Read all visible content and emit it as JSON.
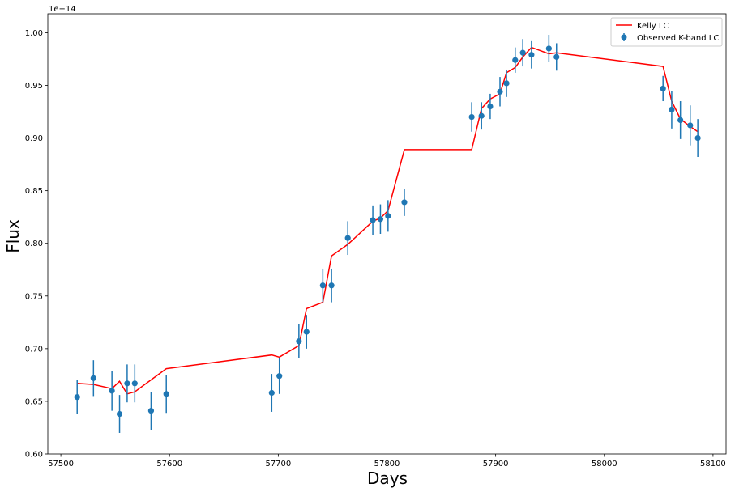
{
  "chart_data": {
    "type": "scatter",
    "xlabel": "Days",
    "ylabel": "Flux",
    "y_offset_label": "1e−14",
    "xlim": [
      57488,
      58112
    ],
    "ylim": [
      0.6,
      1.018
    ],
    "x_ticks": [
      57500,
      57600,
      57700,
      57800,
      57900,
      58000,
      58100
    ],
    "x_tick_labels": [
      "57500",
      "57600",
      "57700",
      "57800",
      "57900",
      "58000",
      "58100"
    ],
    "y_ticks": [
      0.6,
      0.65,
      0.7,
      0.75,
      0.8,
      0.85,
      0.9,
      0.95,
      1.0
    ],
    "y_tick_labels": [
      "0.60",
      "0.65",
      "0.70",
      "0.75",
      "0.80",
      "0.85",
      "0.90",
      "0.95",
      "1.00"
    ],
    "grid": false,
    "legend_position": "top-right",
    "colors": {
      "line": "#ff0000",
      "points": "#1f77b4"
    },
    "series": [
      {
        "name": "Kelly LC",
        "kind": "line",
        "x": [
          57515,
          57530,
          57547,
          57554,
          57561,
          57568,
          57597,
          57694,
          57701,
          57719,
          57726,
          57741,
          57749,
          57764,
          57787,
          57794,
          57801,
          57816,
          57878,
          57887,
          57895,
          57904,
          57910,
          57918,
          57925,
          57933,
          57949,
          57956,
          58054,
          58062,
          58070,
          58079,
          58086
        ],
        "values": [
          0.667,
          0.666,
          0.662,
          0.669,
          0.657,
          0.659,
          0.681,
          0.694,
          0.692,
          0.703,
          0.738,
          0.744,
          0.788,
          0.799,
          0.821,
          0.824,
          0.831,
          0.889,
          0.889,
          0.928,
          0.937,
          0.942,
          0.962,
          0.967,
          0.977,
          0.986,
          0.98,
          0.981,
          0.968,
          0.935,
          0.918,
          0.911,
          0.906
        ]
      },
      {
        "name": "Observed K-band LC",
        "kind": "errorbar",
        "x": [
          57515,
          57530,
          57547,
          57554,
          57561,
          57568,
          57583,
          57597,
          57694,
          57701,
          57719,
          57726,
          57741,
          57749,
          57764,
          57787,
          57794,
          57801,
          57816,
          57878,
          57887,
          57895,
          57904,
          57910,
          57918,
          57925,
          57933,
          57949,
          57956,
          58054,
          58062,
          58070,
          58079,
          58086
        ],
        "values": [
          0.654,
          0.672,
          0.66,
          0.638,
          0.667,
          0.667,
          0.641,
          0.657,
          0.658,
          0.674,
          0.707,
          0.716,
          0.76,
          0.76,
          0.805,
          0.822,
          0.823,
          0.826,
          0.839,
          0.92,
          0.921,
          0.93,
          0.944,
          0.952,
          0.974,
          0.981,
          0.979,
          0.985,
          0.977,
          0.947,
          0.927,
          0.917,
          0.912,
          0.9
        ],
        "errors": [
          0.016,
          0.017,
          0.019,
          0.018,
          0.018,
          0.018,
          0.018,
          0.018,
          0.018,
          0.017,
          0.016,
          0.016,
          0.016,
          0.016,
          0.016,
          0.014,
          0.014,
          0.015,
          0.013,
          0.014,
          0.013,
          0.012,
          0.014,
          0.013,
          0.012,
          0.013,
          0.013,
          0.013,
          0.013,
          0.012,
          0.018,
          0.018,
          0.019,
          0.018
        ]
      }
    ]
  }
}
